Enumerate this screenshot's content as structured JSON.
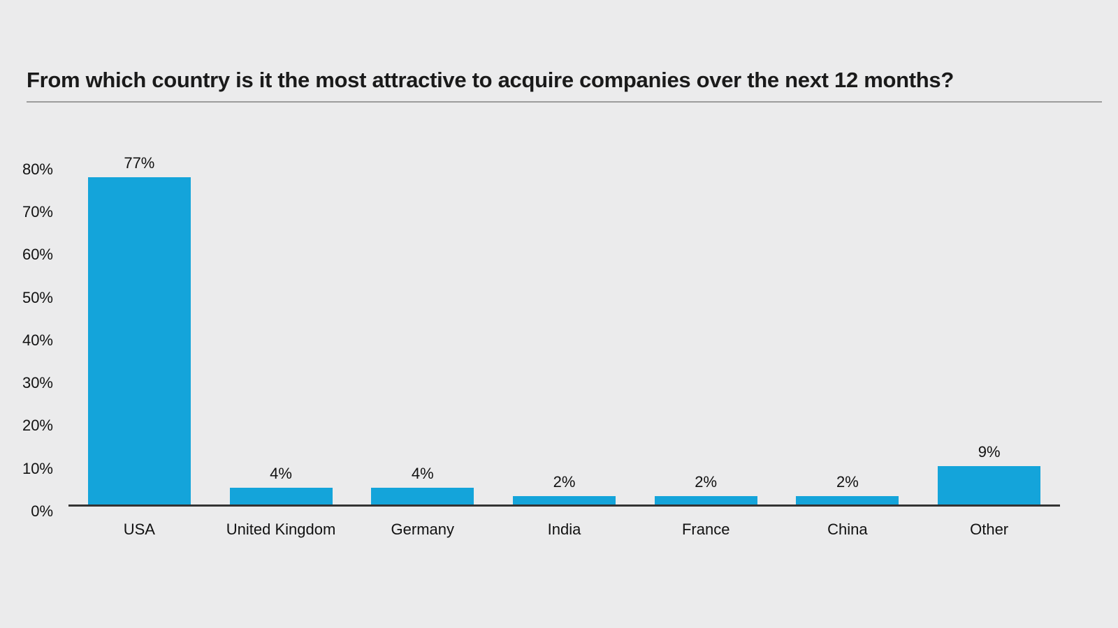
{
  "page": {
    "background_hex": "#ebebec"
  },
  "header": {
    "title": "From which country is it the most attractive to acquire companies over the next 12 months?"
  },
  "chart_data": {
    "type": "bar",
    "title": "From which country is it the most attractive to acquire companies over the next 12 months?",
    "categories": [
      "USA",
      "United Kingdom",
      "Germany",
      "India",
      "France",
      "China",
      "Other"
    ],
    "values": [
      77,
      4,
      4,
      2,
      2,
      2,
      9
    ],
    "value_labels": [
      "77%",
      "4%",
      "4%",
      "2%",
      "2%",
      "2%",
      "9%"
    ],
    "xlabel": "",
    "ylabel": "",
    "ylim": [
      0,
      80
    ],
    "y_ticks": [
      {
        "value": 0,
        "label": "0%"
      },
      {
        "value": 10,
        "label": "10%"
      },
      {
        "value": 20,
        "label": "20%"
      },
      {
        "value": 30,
        "label": "30%"
      },
      {
        "value": 40,
        "label": "40%"
      },
      {
        "value": 50,
        "label": "50%"
      },
      {
        "value": 60,
        "label": "60%"
      },
      {
        "value": 70,
        "label": "70%"
      },
      {
        "value": 80,
        "label": "80%"
      }
    ],
    "grid": false,
    "legend_position": "none",
    "colors": {
      "bar_hex": "#14a4da",
      "axis_hex": "#333333",
      "text_hex": "#111111",
      "title_hex": "#1a1a1a",
      "rule_hex": "#9c9c9c",
      "background_hex": "#ebebec"
    }
  }
}
